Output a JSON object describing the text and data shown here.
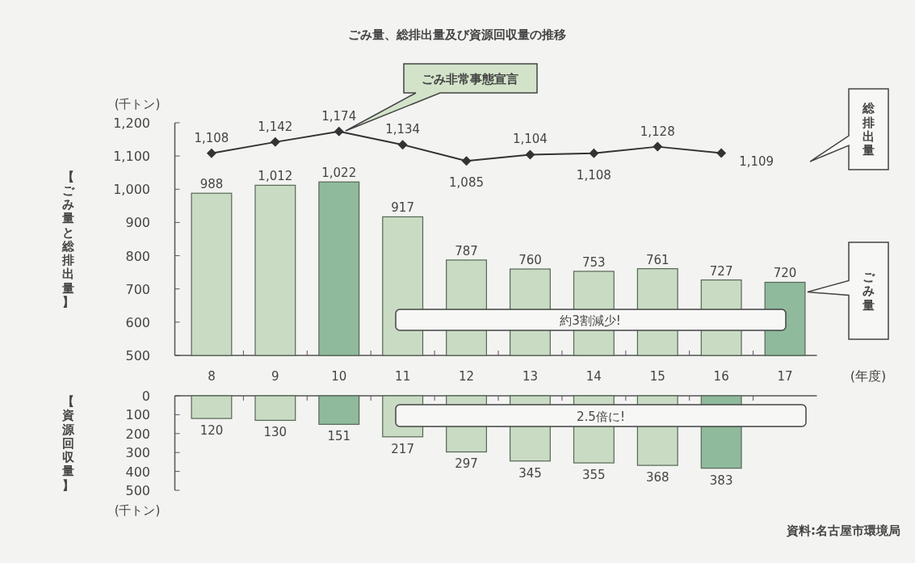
{
  "chart_data": [
    {
      "type": "bar",
      "title": "ごみ量、総排出量及び資源回収量の推移",
      "xlabel": "(年度)",
      "ylabel": "【ごみ量と総排出量】",
      "categories": [
        "8",
        "9",
        "10",
        "11",
        "12",
        "13",
        "14",
        "15",
        "16",
        "17"
      ],
      "series": [
        {
          "name": "ごみ量",
          "value_labels": [
            "988",
            "1,012",
            "1,022",
            "917",
            "787",
            "760",
            "753",
            "761",
            "727",
            "720"
          ],
          "colors": [
            "#c9dcc3",
            "#c9dcc3",
            "#8fba9c",
            "#c9dcc3",
            "#c9dcc3",
            "#c9dcc3",
            "#c9dcc3",
            "#c9dcc3",
            "#c9dcc3",
            "#8fba9c"
          ],
          "values": [
            988,
            1012,
            1022,
            917,
            787,
            760,
            753,
            761,
            727,
            720
          ]
        },
        {
          "name": "総排出量",
          "type": "line",
          "color": "#333333",
          "marker": "diamond",
          "values": [
            1108,
            1142,
            1174,
            1134,
            1085,
            1104,
            1108,
            1128,
            1109,
            null
          ],
          "value_labels": [
            "1,108",
            "1,142",
            "1,174",
            "1,134",
            "1,085",
            "1,104",
            "1,108",
            "1,128",
            "1,109",
            null
          ]
        }
      ],
      "ylim": [
        500,
        1200
      ],
      "yticks": [
        500,
        600,
        700,
        800,
        900,
        {
          "value": 1000,
          "label": "1,000"
        },
        {
          "value": 1100,
          "label": "1,100"
        },
        {
          "value": 1200,
          "label": "1,200"
        }
      ],
      "grid": false,
      "legend": false,
      "annotations": [
        "(千トン)",
        "ごみ非常事態宣言",
        "約3割減少!"
      ]
    },
    {
      "type": "bar",
      "ylabel": "【資源回収量】",
      "categories": [
        "8",
        "9",
        "10",
        "11",
        "12",
        "13",
        "14",
        "15",
        "16",
        "17"
      ],
      "series": [
        {
          "colors": [
            "#c9dcc3",
            "#c9dcc3",
            "#8fba9c",
            "#c9dcc3",
            "#c9dcc3",
            "#c9dcc3",
            "#c9dcc3",
            "#c9dcc3",
            "#8fba9c",
            "#c9dcc3"
          ],
          "values": [
            120,
            130,
            151,
            217,
            297,
            345,
            355,
            368,
            383,
            null
          ]
        }
      ],
      "ylim": [
        500,
        0
      ],
      "yticks": [
        0,
        100,
        200,
        300,
        400,
        500
      ],
      "tick_labels": "y",
      "data_labels": true,
      "grid": false,
      "legend": false,
      "annotations": [
        "(千トン)",
        "2.5倍に!",
        "資料:名古屋市環境局"
      ]
    }
  ]
}
